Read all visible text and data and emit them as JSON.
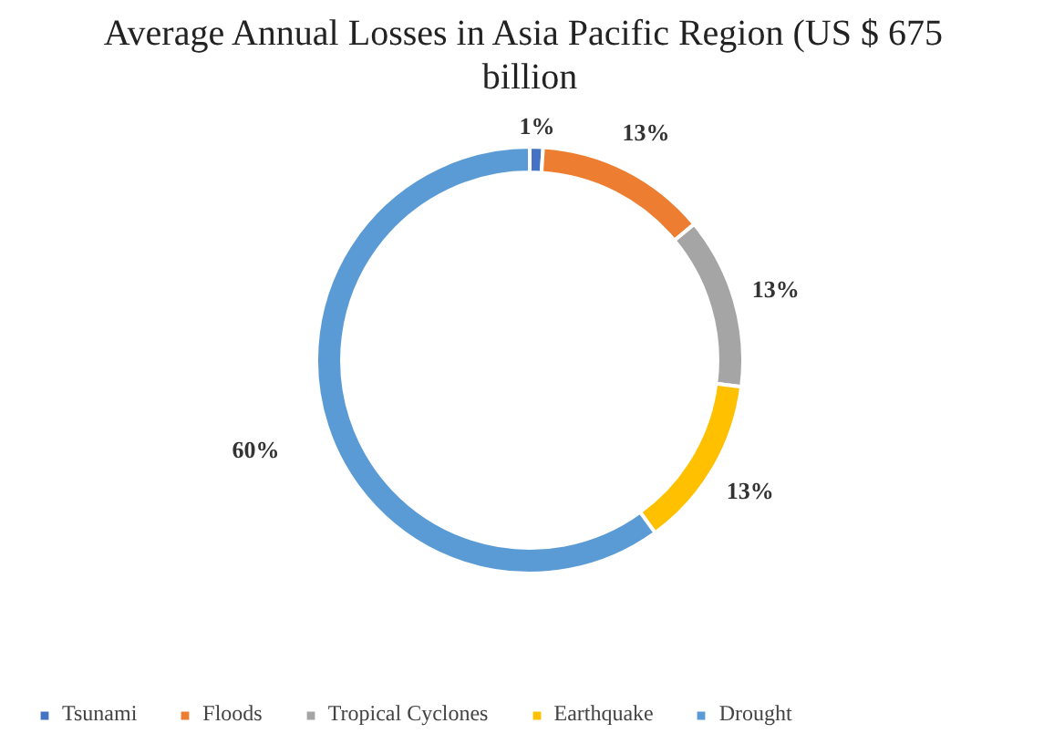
{
  "chart_data": {
    "type": "donut",
    "title": "Average Annual Losses  in Asia Pacific Region (US $ 675 billion",
    "categories": [
      "Tsunami",
      "Floods",
      "Tropical Cyclones",
      "Earthquake",
      "Drought"
    ],
    "values": [
      1,
      13,
      13,
      13,
      60
    ],
    "colors": [
      "#4472c4",
      "#ed7d31",
      "#a5a5a5",
      "#ffc000",
      "#5b9bd5"
    ],
    "value_labels": [
      "1%",
      "13%",
      "13%",
      "13%",
      "60%"
    ],
    "legend": "bottom"
  }
}
